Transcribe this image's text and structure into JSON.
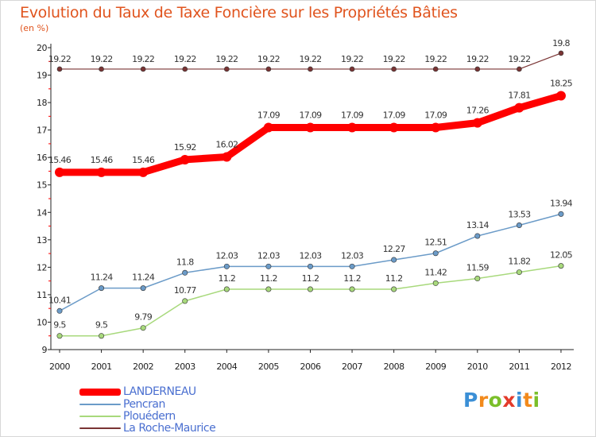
{
  "chart_data": {
    "type": "line",
    "title": "Evolution du Taux de Taxe Foncière sur les Propriétés Bâties",
    "unit_label": "(en %)",
    "xlabel": "",
    "ylabel": "",
    "ylim": [
      9,
      20
    ],
    "y_ticks": [
      9,
      10,
      11,
      12,
      13,
      14,
      15,
      16,
      17,
      18,
      19,
      20
    ],
    "categories": [
      "2000",
      "2001",
      "2002",
      "2003",
      "2004",
      "2005",
      "2006",
      "2007",
      "2008",
      "2009",
      "2010",
      "2011",
      "2012"
    ],
    "grid": false,
    "legend_position": "bottom-left",
    "series": [
      {
        "name": "LANDERNEAU",
        "color": "#ff0000",
        "values": [
          15.46,
          15.46,
          15.46,
          15.92,
          16.02,
          17.09,
          17.09,
          17.09,
          17.09,
          17.09,
          17.26,
          17.81,
          18.25
        ],
        "labels": [
          "15.46",
          "15.46",
          "15.46",
          "15.92",
          "16.02",
          "17.09",
          "17.09",
          "17.09",
          "17.09",
          "17.09",
          "17.26",
          "17.81",
          "18.25"
        ]
      },
      {
        "name": "Pencran",
        "color": "#6b9bc8",
        "values": [
          10.41,
          11.24,
          11.24,
          11.8,
          12.03,
          12.03,
          12.03,
          12.03,
          12.27,
          12.51,
          13.14,
          13.53,
          13.94
        ],
        "labels": [
          "10.41",
          "11.24",
          "11.24",
          "11.8",
          "12.03",
          "12.03",
          "12.03",
          "12.03",
          "12.27",
          "12.51",
          "13.14",
          "13.53",
          "13.94"
        ]
      },
      {
        "name": "Plouédern",
        "color": "#a8d97c",
        "values": [
          9.5,
          9.5,
          9.79,
          10.77,
          11.2,
          11.2,
          11.2,
          11.2,
          11.2,
          11.42,
          11.59,
          11.82,
          12.05
        ],
        "labels": [
          "9.5",
          "9.5",
          "9.79",
          "10.77",
          "11.2",
          "11.2",
          "11.2",
          "11.2",
          "11.2",
          "11.42",
          "11.59",
          "11.82",
          "12.05"
        ]
      },
      {
        "name": "La Roche-Maurice",
        "color": "#7a3434",
        "values": [
          19.22,
          19.22,
          19.22,
          19.22,
          19.22,
          19.22,
          19.22,
          19.22,
          19.22,
          19.22,
          19.22,
          19.22,
          19.8
        ],
        "labels": [
          "19.22",
          "19.22",
          "19.22",
          "19.22",
          "19.22",
          "19.22",
          "19.22",
          "19.22",
          "19.22",
          "19.22",
          "19.22",
          "19.22",
          "19.8"
        ]
      }
    ]
  },
  "logo": {
    "text": "Proxiti",
    "letters": [
      {
        "ch": "P",
        "color": "#3b8fd6"
      },
      {
        "ch": "r",
        "color": "#f28a1c"
      },
      {
        "ch": "o",
        "color": "#7bbf2a"
      },
      {
        "ch": "x",
        "color": "#e33b2b"
      },
      {
        "ch": "i",
        "color": "#3b8fd6"
      },
      {
        "ch": "t",
        "color": "#f28a1c"
      },
      {
        "ch": "i",
        "color": "#7bbf2a"
      }
    ]
  }
}
